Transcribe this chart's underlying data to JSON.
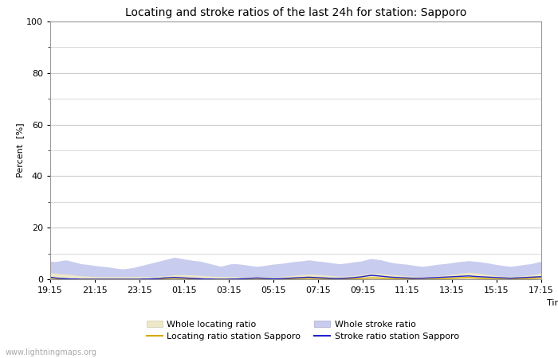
{
  "title": "Locating and stroke ratios of the last 24h for station: Sapporo",
  "xlabel": "Time",
  "ylabel": "Percent  [%]",
  "ylim": [
    0,
    100
  ],
  "yticks_major": [
    0,
    20,
    40,
    60,
    80,
    100
  ],
  "yticks_minor": [
    10,
    30,
    50,
    70,
    90
  ],
  "x_tick_labels": [
    "19:15",
    "21:15",
    "23:15",
    "01:15",
    "03:15",
    "05:15",
    "07:15",
    "09:15",
    "11:15",
    "13:15",
    "15:15",
    "17:15"
  ],
  "watermark": "www.lightningmaps.org",
  "background_color": "#ffffff",
  "plot_bg_color": "#ffffff",
  "grid_color": "#cccccc",
  "whole_locating_fill_color": "#ede8c8",
  "whole_stroke_fill_color": "#c8ccee",
  "locating_station_color": "#d4a800",
  "stroke_station_color": "#2222cc",
  "n_points": 96,
  "whole_stroke_values": [
    7.0,
    6.8,
    7.2,
    7.5,
    7.0,
    6.5,
    6.0,
    5.8,
    5.5,
    5.2,
    5.0,
    4.8,
    4.5,
    4.2,
    4.0,
    4.2,
    4.5,
    5.0,
    5.5,
    6.0,
    6.5,
    7.0,
    7.5,
    8.0,
    8.5,
    8.2,
    7.8,
    7.5,
    7.2,
    7.0,
    6.5,
    6.0,
    5.5,
    5.0,
    5.5,
    6.0,
    6.0,
    5.8,
    5.5,
    5.2,
    5.0,
    5.2,
    5.5,
    5.8,
    6.0,
    6.2,
    6.5,
    6.8,
    7.0,
    7.2,
    7.5,
    7.2,
    7.0,
    6.8,
    6.5,
    6.2,
    6.0,
    6.2,
    6.5,
    6.8,
    7.0,
    7.5,
    8.0,
    7.8,
    7.5,
    7.0,
    6.5,
    6.2,
    6.0,
    5.8,
    5.5,
    5.2,
    5.0,
    5.2,
    5.5,
    5.8,
    6.0,
    6.2,
    6.5,
    6.8,
    7.0,
    7.2,
    7.0,
    6.8,
    6.5,
    6.2,
    5.8,
    5.5,
    5.2,
    5.0,
    5.2,
    5.5,
    5.8,
    6.0,
    6.5,
    7.0
  ],
  "whole_locating_values": [
    2.5,
    2.3,
    2.1,
    2.0,
    1.8,
    1.5,
    1.3,
    1.2,
    1.1,
    1.0,
    1.0,
    1.0,
    1.0,
    1.0,
    1.0,
    1.0,
    1.0,
    1.0,
    1.0,
    1.0,
    1.0,
    1.2,
    1.3,
    1.5,
    1.7,
    1.8,
    1.8,
    1.7,
    1.6,
    1.5,
    1.3,
    1.2,
    1.1,
    1.0,
    1.0,
    1.0,
    1.0,
    1.0,
    1.0,
    1.0,
    1.0,
    1.0,
    1.0,
    1.0,
    1.0,
    1.2,
    1.3,
    1.5,
    1.7,
    1.8,
    2.0,
    2.0,
    1.8,
    1.7,
    1.5,
    1.3,
    1.2,
    1.2,
    1.3,
    1.5,
    1.7,
    2.0,
    2.2,
    2.3,
    2.2,
    2.0,
    1.8,
    1.7,
    1.5,
    1.3,
    1.2,
    1.1,
    1.0,
    1.1,
    1.2,
    1.3,
    1.5,
    1.7,
    2.0,
    2.2,
    2.5,
    2.7,
    2.5,
    2.3,
    2.0,
    1.8,
    1.5,
    1.3,
    1.2,
    1.1,
    1.2,
    1.3,
    1.5,
    1.7,
    2.0,
    2.5
  ],
  "locating_station_values": [
    0.5,
    0.3,
    0.2,
    0.1,
    0.1,
    0.0,
    0.0,
    0.0,
    0.0,
    0.0,
    0.0,
    0.0,
    0.0,
    0.0,
    0.0,
    0.0,
    0.0,
    0.0,
    0.0,
    0.0,
    0.1,
    0.1,
    0.2,
    0.3,
    0.4,
    0.3,
    0.3,
    0.2,
    0.2,
    0.1,
    0.1,
    0.0,
    0.0,
    0.0,
    0.0,
    0.0,
    0.0,
    0.0,
    0.0,
    0.0,
    0.0,
    0.0,
    0.0,
    0.0,
    0.0,
    0.1,
    0.1,
    0.2,
    0.3,
    0.3,
    0.4,
    0.3,
    0.3,
    0.2,
    0.2,
    0.1,
    0.1,
    0.1,
    0.1,
    0.2,
    0.3,
    0.4,
    0.5,
    0.5,
    0.4,
    0.3,
    0.2,
    0.2,
    0.1,
    0.1,
    0.1,
    0.0,
    0.0,
    0.0,
    0.1,
    0.1,
    0.2,
    0.3,
    0.4,
    0.5,
    0.6,
    0.7,
    0.5,
    0.4,
    0.3,
    0.2,
    0.1,
    0.1,
    0.0,
    0.0,
    0.1,
    0.1,
    0.2,
    0.3,
    0.4,
    0.6
  ],
  "stroke_station_values": [
    0.8,
    0.5,
    0.3,
    0.2,
    0.1,
    0.1,
    0.0,
    0.0,
    0.0,
    0.0,
    0.0,
    0.0,
    0.0,
    0.0,
    0.0,
    0.0,
    0.0,
    0.0,
    0.1,
    0.1,
    0.2,
    0.3,
    0.5,
    0.6,
    0.7,
    0.6,
    0.5,
    0.4,
    0.3,
    0.2,
    0.1,
    0.1,
    0.0,
    0.0,
    0.0,
    0.1,
    0.1,
    0.2,
    0.3,
    0.4,
    0.5,
    0.4,
    0.3,
    0.2,
    0.2,
    0.3,
    0.4,
    0.5,
    0.6,
    0.7,
    0.8,
    0.7,
    0.6,
    0.5,
    0.4,
    0.3,
    0.3,
    0.4,
    0.5,
    0.7,
    0.9,
    1.2,
    1.5,
    1.4,
    1.2,
    1.0,
    0.8,
    0.7,
    0.6,
    0.5,
    0.4,
    0.4,
    0.4,
    0.5,
    0.6,
    0.7,
    0.8,
    0.9,
    1.0,
    1.1,
    1.2,
    1.3,
    1.1,
    1.0,
    0.9,
    0.8,
    0.7,
    0.6,
    0.5,
    0.4,
    0.5,
    0.6,
    0.7,
    0.8,
    0.9,
    1.0
  ],
  "title_fontsize": 10,
  "axis_fontsize": 8,
  "tick_fontsize": 8,
  "legend_fontsize": 8
}
